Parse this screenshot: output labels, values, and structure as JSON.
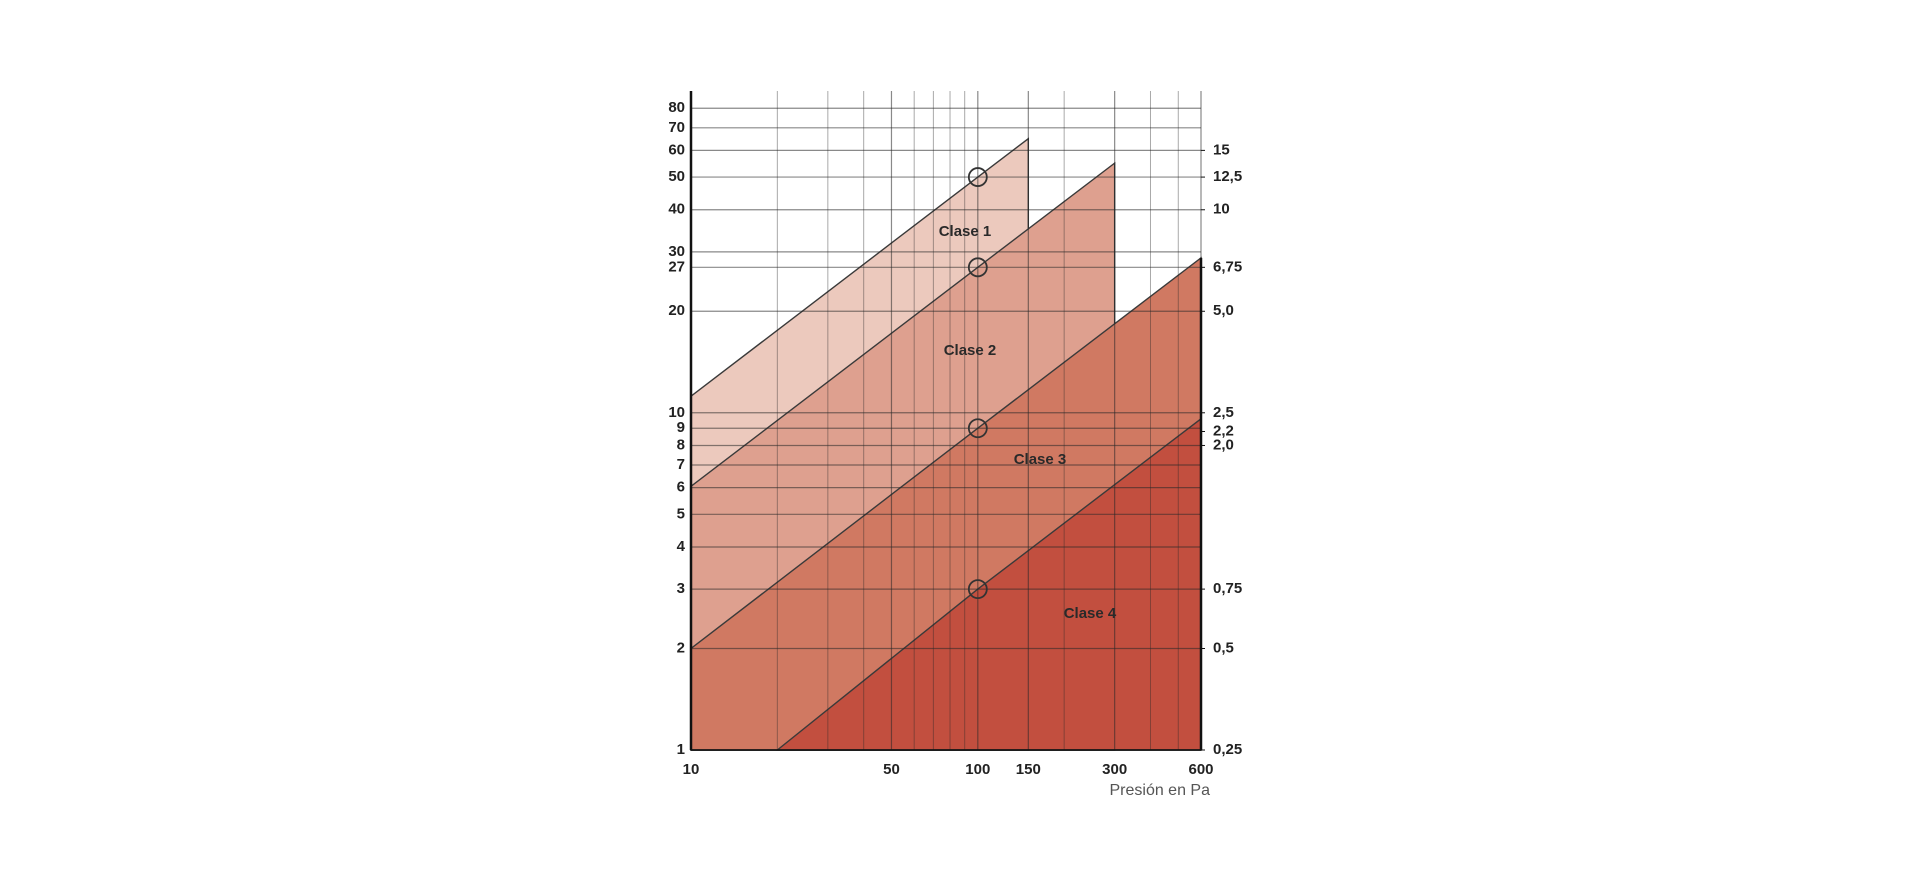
{
  "chart_data": {
    "type": "area",
    "xlabel": "Presión en Pa",
    "xscale": "log",
    "yscale": "log",
    "xlim": [
      10,
      600
    ],
    "ylim": [
      1,
      90
    ],
    "y2lim": [
      0.25,
      22.5
    ],
    "xticks": [
      10,
      50,
      100,
      150,
      300,
      600
    ],
    "xminorticks": [
      20,
      30,
      40,
      60,
      70,
      80,
      90,
      200,
      400,
      500
    ],
    "yticks": [
      1,
      2,
      3,
      4,
      5,
      6,
      7,
      8,
      9,
      10,
      20,
      27,
      30,
      40,
      50,
      60,
      70,
      80
    ],
    "y2ticks": [
      15,
      {
        "value": 12.5,
        "label": "12,5"
      },
      10,
      {
        "value": 6.75,
        "label": "6,75"
      },
      {
        "value": 5.0,
        "label": "5,0"
      },
      {
        "value": 2.5,
        "label": "2,5"
      },
      {
        "value": 2.2,
        "label": "2,2"
      },
      {
        "value": 2.0,
        "label": "2,0"
      },
      {
        "value": 0.75,
        "label": "0,75"
      },
      {
        "value": 0.5,
        "label": "0,5"
      },
      {
        "value": 0.25,
        "label": "0,25"
      }
    ],
    "grid": true,
    "series": [
      {
        "name": "Clase 1",
        "color": "#ecc9bd",
        "x": [
          10,
          100,
          150
        ],
        "values": [
          11.2,
          50,
          65
        ]
      },
      {
        "name": "Clase 2",
        "color": "#dea08f",
        "x": [
          10,
          100,
          300
        ],
        "values": [
          6.05,
          27,
          55
        ]
      },
      {
        "name": "Clase 3",
        "color": "#d07962",
        "x": [
          10,
          100,
          600
        ],
        "values": [
          2.0,
          9,
          28.8
        ]
      },
      {
        "name": "Clase 4",
        "color": "#c24f3f",
        "x": [
          20,
          100,
          600
        ],
        "values": [
          1,
          3,
          9.6
        ]
      }
    ]
  }
}
